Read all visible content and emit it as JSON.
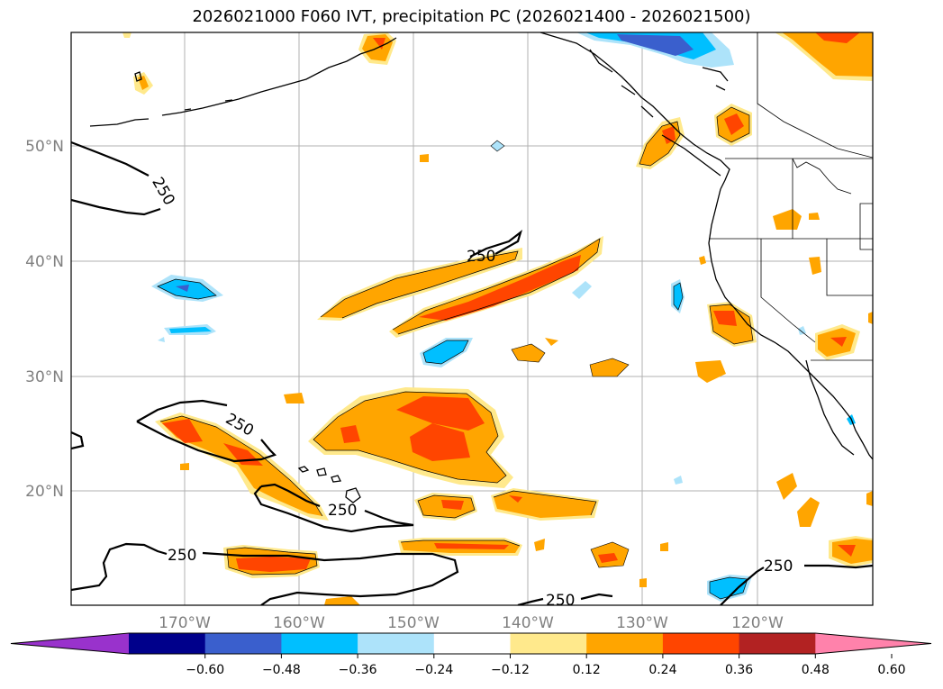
{
  "title": "2026021000 F060 IVT, precipitation PC (2026021400 - 2026021500)",
  "map": {
    "lon_labels": [
      "170°W",
      "160°W",
      "150°W",
      "140°W",
      "130°W",
      "120°W"
    ],
    "lat_labels": [
      "50°N",
      "40°N",
      "30°N",
      "20°N"
    ],
    "ivt_contour_level": "250"
  },
  "colorbar": {
    "colors": [
      "#9932CC",
      "#00008B",
      "#3A5FCD",
      "#00BFFF",
      "#ADE3FA",
      "#FFFFFF",
      "#FFE98C",
      "#FFA500",
      "#FF4500",
      "#B22222",
      "#FF82AB"
    ],
    "tick_labels": [
      "−0.60",
      "−0.48",
      "−0.36",
      "−0.24",
      "−0.12",
      "0.12",
      "0.24",
      "0.36",
      "0.48",
      "0.60"
    ]
  }
}
